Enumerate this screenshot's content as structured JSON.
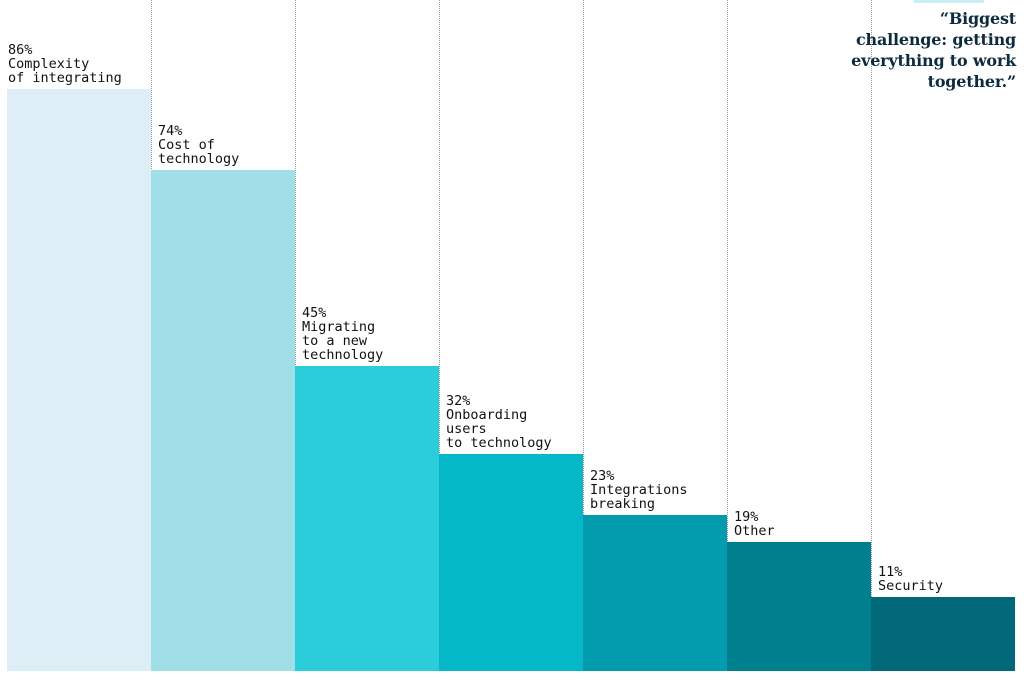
{
  "quote": "“Biggest challenge: getting everything to work together.”",
  "chart_data": {
    "type": "bar",
    "categories": [
      "Complexity\nof integrating",
      "Cost of\ntechnology",
      "Migrating\nto a new\ntechnology",
      "Onboarding\nusers\nto technology",
      "Integrations\nbreaking",
      "Other",
      "Security"
    ],
    "values": [
      86,
      74,
      45,
      32,
      23,
      19,
      11
    ],
    "value_labels": [
      "86%",
      "74%",
      "45%",
      "32%",
      "23%",
      "19%",
      "11%"
    ],
    "colors": [
      "#ddeef6",
      "#a1dfe8",
      "#2ccdda",
      "#04b8c8",
      "#029cae",
      "#00808f",
      "#006878"
    ],
    "ylim": [
      0,
      100
    ],
    "grid": false,
    "legend": "none"
  }
}
